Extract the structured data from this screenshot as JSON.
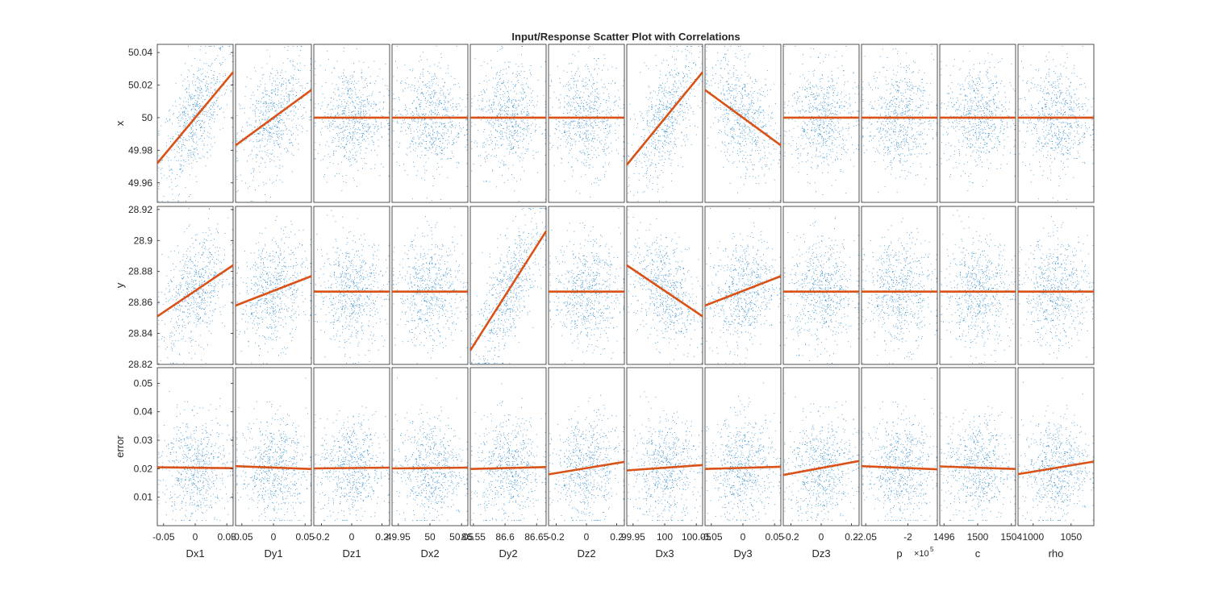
{
  "chart_data": {
    "type": "scatter-matrix",
    "title": "Input/Response Scatter Plot with Correlations",
    "inputs": [
      {
        "name": "Dx1",
        "xlim": [
          -0.06,
          0.06
        ],
        "ticks": [
          {
            "v": -0.05,
            "label": "-0.05"
          },
          {
            "v": 0,
            "label": "0"
          },
          {
            "v": 0.05,
            "label": "0.05"
          }
        ]
      },
      {
        "name": "Dy1",
        "xlim": [
          -0.06,
          0.06
        ],
        "ticks": [
          {
            "v": -0.05,
            "label": "-0.05"
          },
          {
            "v": 0,
            "label": "0"
          },
          {
            "v": 0.05,
            "label": "0.05"
          }
        ]
      },
      {
        "name": "Dz1",
        "xlim": [
          -0.25,
          0.25
        ],
        "ticks": [
          {
            "v": -0.2,
            "label": "-0.2"
          },
          {
            "v": 0,
            "label": "0"
          },
          {
            "v": 0.2,
            "label": "0.2"
          }
        ]
      },
      {
        "name": "Dx2",
        "xlim": [
          49.94,
          50.06
        ],
        "ticks": [
          {
            "v": 49.95,
            "label": "49.95"
          },
          {
            "v": 50,
            "label": "50"
          },
          {
            "v": 50.05,
            "label": "50.05"
          }
        ]
      },
      {
        "name": "Dy2",
        "xlim": [
          86.545,
          86.665
        ],
        "ticks": [
          {
            "v": 86.55,
            "label": "86.55"
          },
          {
            "v": 86.6,
            "label": "86.6"
          },
          {
            "v": 86.65,
            "label": "86.65"
          }
        ]
      },
      {
        "name": "Dz2",
        "xlim": [
          -0.25,
          0.25
        ],
        "ticks": [
          {
            "v": -0.2,
            "label": "-0.2"
          },
          {
            "v": 0,
            "label": "0"
          },
          {
            "v": 0.2,
            "label": "0.2"
          }
        ]
      },
      {
        "name": "Dx3",
        "xlim": [
          99.94,
          100.06
        ],
        "ticks": [
          {
            "v": 99.95,
            "label": "99.95"
          },
          {
            "v": 100,
            "label": "100"
          },
          {
            "v": 100.05,
            "label": "100.05"
          }
        ]
      },
      {
        "name": "Dy3",
        "xlim": [
          -0.06,
          0.06
        ],
        "ticks": [
          {
            "v": -0.05,
            "label": "-0.05"
          },
          {
            "v": 0,
            "label": "0"
          },
          {
            "v": 0.05,
            "label": "0.05"
          }
        ]
      },
      {
        "name": "Dz3",
        "xlim": [
          -0.25,
          0.25
        ],
        "ticks": [
          {
            "v": -0.2,
            "label": "-0.2"
          },
          {
            "v": 0,
            "label": "0"
          },
          {
            "v": 0.2,
            "label": "0.2"
          }
        ]
      },
      {
        "name": "p",
        "xlim": [
          -2.055,
          -1.965
        ],
        "ticks": [
          {
            "v": -2.05,
            "label": "-2.05"
          },
          {
            "v": -2,
            "label": "-2"
          }
        ],
        "exponent_label": "×10",
        "exponent": "5"
      },
      {
        "name": "c",
        "xlim": [
          1495.5,
          1504.5
        ],
        "ticks": [
          {
            "v": 1496,
            "label": "1496"
          },
          {
            "v": 1500,
            "label": "1500"
          },
          {
            "v": 1504,
            "label": "1504"
          }
        ]
      },
      {
        "name": "rho",
        "xlim": [
          980,
          1080
        ],
        "ticks": [
          {
            "v": 1000,
            "label": "1000"
          },
          {
            "v": 1050,
            "label": "1050"
          }
        ]
      }
    ],
    "responses": [
      {
        "name": "x",
        "ylim": [
          49.948,
          50.045
        ],
        "ticks": [
          {
            "v": 49.96,
            "label": "49.96"
          },
          {
            "v": 49.98,
            "label": "49.98"
          },
          {
            "v": 50,
            "label": "50"
          },
          {
            "v": 50.02,
            "label": "50.02"
          },
          {
            "v": 50.04,
            "label": "50.04"
          }
        ]
      },
      {
        "name": "y",
        "ylim": [
          28.82,
          28.922
        ],
        "ticks": [
          {
            "v": 28.82,
            "label": "28.82"
          },
          {
            "v": 28.84,
            "label": "28.84"
          },
          {
            "v": 28.86,
            "label": "28.86"
          },
          {
            "v": 28.88,
            "label": "28.88"
          },
          {
            "v": 28.9,
            "label": "28.9"
          },
          {
            "v": 28.92,
            "label": "28.92"
          }
        ]
      },
      {
        "name": "error",
        "ylim": [
          0,
          0.0555
        ],
        "ticks": [
          {
            "v": 0.01,
            "label": "0.01"
          },
          {
            "v": 0.02,
            "label": "0.02"
          },
          {
            "v": 0.03,
            "label": "0.03"
          },
          {
            "v": 0.04,
            "label": "0.04"
          },
          {
            "v": 0.05,
            "label": "0.05"
          }
        ]
      }
    ],
    "fit_lines": [
      [
        {
          "y0": 49.972,
          "y1": 50.028
        },
        {
          "y0": 49.983,
          "y1": 50.017
        },
        {
          "y0": 50.0,
          "y1": 50.0
        },
        {
          "y0": 50.0,
          "y1": 50.0
        },
        {
          "y0": 50.0,
          "y1": 50.0
        },
        {
          "y0": 50.0,
          "y1": 50.0
        },
        {
          "y0": 49.971,
          "y1": 50.028
        },
        {
          "y0": 50.017,
          "y1": 49.983
        },
        {
          "y0": 50.0,
          "y1": 50.0
        },
        {
          "y0": 50.0,
          "y1": 50.0
        },
        {
          "y0": 50.0,
          "y1": 50.0
        },
        {
          "y0": 50.0,
          "y1": 50.0
        }
      ],
      [
        {
          "y0": 28.851,
          "y1": 28.884
        },
        {
          "y0": 28.858,
          "y1": 28.877
        },
        {
          "y0": 28.867,
          "y1": 28.867
        },
        {
          "y0": 28.867,
          "y1": 28.867
        },
        {
          "y0": 28.829,
          "y1": 28.906
        },
        {
          "y0": 28.867,
          "y1": 28.867
        },
        {
          "y0": 28.884,
          "y1": 28.851
        },
        {
          "y0": 28.858,
          "y1": 28.877
        },
        {
          "y0": 28.867,
          "y1": 28.867
        },
        {
          "y0": 28.867,
          "y1": 28.867
        },
        {
          "y0": 28.867,
          "y1": 28.867
        },
        {
          "y0": 28.867,
          "y1": 28.867
        }
      ],
      [
        {
          "y0": 0.0205,
          "y1": 0.0202
        },
        {
          "y0": 0.0209,
          "y1": 0.0199
        },
        {
          "y0": 0.0201,
          "y1": 0.0204
        },
        {
          "y0": 0.0201,
          "y1": 0.0204
        },
        {
          "y0": 0.0199,
          "y1": 0.0206
        },
        {
          "y0": 0.018,
          "y1": 0.0224
        },
        {
          "y0": 0.0194,
          "y1": 0.0213
        },
        {
          "y0": 0.0199,
          "y1": 0.0207
        },
        {
          "y0": 0.0178,
          "y1": 0.0227
        },
        {
          "y0": 0.0209,
          "y1": 0.0198
        },
        {
          "y0": 0.0208,
          "y1": 0.0199
        },
        {
          "y0": 0.0181,
          "y1": 0.0225
        }
      ]
    ],
    "error_distribution": {
      "center": 0.02,
      "spread": 0.009,
      "min": 0.002,
      "max": 0.052
    },
    "colors": {
      "points": "#0072BD",
      "fit_line": "#D95319",
      "axes": "#262626"
    }
  }
}
